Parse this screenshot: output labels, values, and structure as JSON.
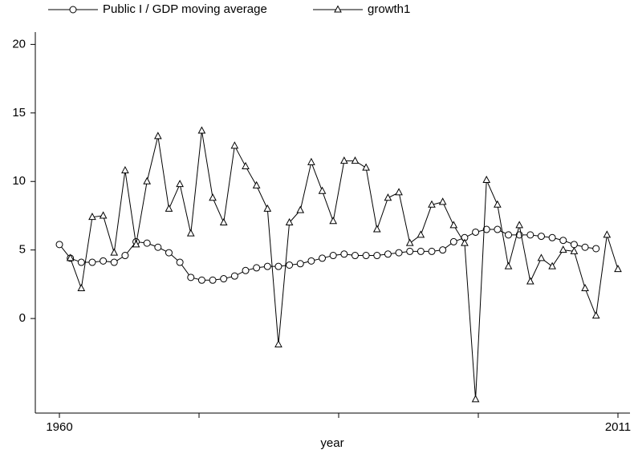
{
  "chart_data": {
    "type": "line",
    "xlabel": "year",
    "x": [
      1960,
      1961,
      1962,
      1963,
      1964,
      1965,
      1966,
      1967,
      1968,
      1969,
      1970,
      1971,
      1972,
      1973,
      1974,
      1975,
      1976,
      1977,
      1978,
      1979,
      1980,
      1981,
      1982,
      1983,
      1984,
      1985,
      1986,
      1987,
      1988,
      1989,
      1990,
      1991,
      1992,
      1993,
      1994,
      1995,
      1996,
      1997,
      1998,
      1999,
      2000,
      2001,
      2002,
      2003,
      2004,
      2005,
      2006,
      2007,
      2008,
      2009,
      2010,
      2011
    ],
    "series": [
      {
        "name": "Public I / GDP moving average",
        "color": "#000000",
        "marker": "circle",
        "values": [
          5.4,
          4.4,
          4.1,
          4.1,
          4.2,
          4.1,
          4.6,
          5.6,
          5.5,
          5.2,
          4.8,
          4.1,
          3.0,
          2.8,
          2.8,
          2.9,
          3.1,
          3.5,
          3.7,
          3.8,
          3.8,
          3.9,
          4.0,
          4.2,
          4.4,
          4.6,
          4.7,
          4.6,
          4.6,
          4.6,
          4.7,
          4.8,
          4.9,
          4.9,
          4.9,
          5.0,
          5.6,
          5.9,
          6.3,
          6.5,
          6.5,
          6.1,
          6.1,
          6.1,
          6.0,
          5.9,
          5.7,
          5.4,
          5.2,
          5.1,
          null,
          null
        ]
      },
      {
        "name": "growth1",
        "color": "#000000",
        "marker": "triangle",
        "values": [
          null,
          4.4,
          2.2,
          7.4,
          7.5,
          4.8,
          10.8,
          5.4,
          10.0,
          13.3,
          8.0,
          9.8,
          6.2,
          13.7,
          8.8,
          7.0,
          12.6,
          11.1,
          9.7,
          8.0,
          -1.9,
          7.0,
          7.9,
          11.4,
          9.3,
          7.1,
          11.5,
          11.5,
          11.0,
          6.5,
          8.8,
          9.2,
          5.5,
          6.1,
          8.3,
          8.5,
          6.8,
          5.5,
          -5.9,
          10.1,
          8.3,
          3.8,
          6.8,
          2.7,
          4.4,
          3.8,
          5.0,
          4.9,
          2.2,
          0.2,
          6.1,
          3.6
        ]
      }
    ],
    "xlim": [
      1957.8,
      2012.1
    ],
    "xticks": [
      1960,
      2011
    ],
    "xticks_unlabeled": [
      1972.75,
      1985.5,
      1998.25
    ],
    "ylim": [
      -6.9,
      20.9
    ],
    "yticks": [
      0,
      5,
      10,
      15,
      20
    ],
    "legend": "top"
  }
}
